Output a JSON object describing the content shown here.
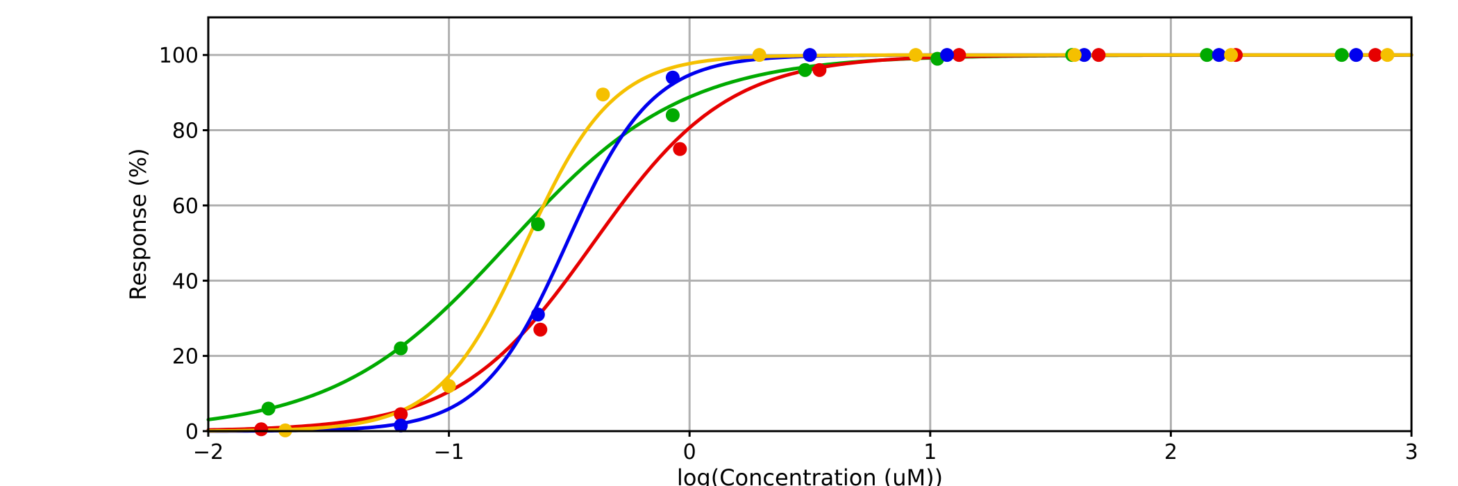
{
  "chart_data": {
    "type": "line",
    "title": "",
    "xlabel": "log(Concentration (uM))",
    "ylabel": "Response (%)",
    "xlim": [
      -2,
      3
    ],
    "ylim": [
      0,
      110
    ],
    "xticks": [
      -2,
      -1,
      0,
      1,
      2,
      3
    ],
    "xtick_labels": [
      "−2",
      "−1",
      "0",
      "1",
      "2",
      "3"
    ],
    "yticks": [
      0,
      20,
      40,
      60,
      80,
      100
    ],
    "ytick_labels": [
      "0",
      "20",
      "40",
      "60",
      "80",
      "100"
    ],
    "grid": true,
    "legend": "none",
    "series": [
      {
        "color": "#00aa00",
        "fit": {
          "bottom": 0,
          "top": 100,
          "logEC50": -0.75,
          "hill": 1.2
        },
        "points": [
          {
            "x": -1.75,
            "y": 6
          },
          {
            "x": -1.2,
            "y": 22
          },
          {
            "x": -0.63,
            "y": 55
          },
          {
            "x": -0.07,
            "y": 84
          },
          {
            "x": 0.48,
            "y": 96
          },
          {
            "x": 1.03,
            "y": 99
          },
          {
            "x": 1.59,
            "y": 100
          },
          {
            "x": 2.15,
            "y": 100
          },
          {
            "x": 2.71,
            "y": 100
          }
        ]
      },
      {
        "color": "#e60000",
        "fit": {
          "bottom": 0,
          "top": 100,
          "logEC50": -0.4,
          "hill": 1.55
        },
        "points": [
          {
            "x": -1.78,
            "y": 0.5
          },
          {
            "x": -1.2,
            "y": 4.5
          },
          {
            "x": -0.62,
            "y": 27
          },
          {
            "x": -0.04,
            "y": 75
          },
          {
            "x": 0.54,
            "y": 96
          },
          {
            "x": 1.12,
            "y": 100
          },
          {
            "x": 1.7,
            "y": 100
          },
          {
            "x": 2.27,
            "y": 100
          },
          {
            "x": 2.85,
            "y": 100
          }
        ]
      },
      {
        "color": "#0000ee",
        "fit": {
          "bottom": 0,
          "top": 100,
          "logEC50": -0.51,
          "hill": 2.45
        },
        "points": [
          {
            "x": -1.2,
            "y": 1.5
          },
          {
            "x": -0.63,
            "y": 31
          },
          {
            "x": -0.07,
            "y": 94
          },
          {
            "x": 0.5,
            "y": 100
          },
          {
            "x": 1.07,
            "y": 100
          },
          {
            "x": 1.64,
            "y": 100
          },
          {
            "x": 2.2,
            "y": 100
          },
          {
            "x": 2.77,
            "y": 100
          }
        ]
      },
      {
        "color": "#f5c000",
        "fit": {
          "bottom": 0,
          "top": 100,
          "logEC50": -0.68,
          "hill": 2.4
        },
        "points": [
          {
            "x": -1.68,
            "y": 0.2
          },
          {
            "x": -1.0,
            "y": 12
          },
          {
            "x": -0.36,
            "y": 89.5
          },
          {
            "x": 0.29,
            "y": 100
          },
          {
            "x": 0.94,
            "y": 100
          },
          {
            "x": 1.6,
            "y": 100
          },
          {
            "x": 2.25,
            "y": 100
          },
          {
            "x": 2.9,
            "y": 100
          }
        ]
      }
    ]
  }
}
